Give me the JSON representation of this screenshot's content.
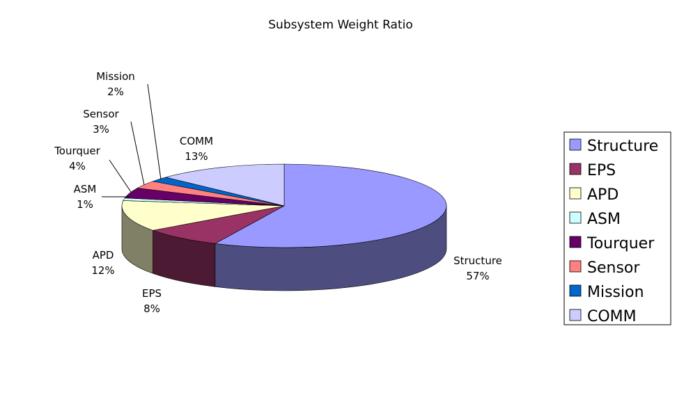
{
  "chart_data": {
    "type": "pie",
    "title": "Subsystem Weight Ratio",
    "categories": [
      "Structure",
      "EPS",
      "APD",
      "ASM",
      "Tourquer",
      "Sensor",
      "Mission",
      "COMM"
    ],
    "values": [
      57,
      8,
      12,
      1,
      4,
      3,
      2,
      13
    ],
    "value_labels": [
      "57%",
      "8%",
      "12%",
      "1%",
      "4%",
      "3%",
      "2%",
      "13%"
    ],
    "colors": [
      "#9999FF",
      "#993366",
      "#FFFFCC",
      "#CCFFFF",
      "#660066",
      "#FF8080",
      "#0066CC",
      "#CCCCFF"
    ],
    "style": "3d",
    "legend_position": "right"
  }
}
